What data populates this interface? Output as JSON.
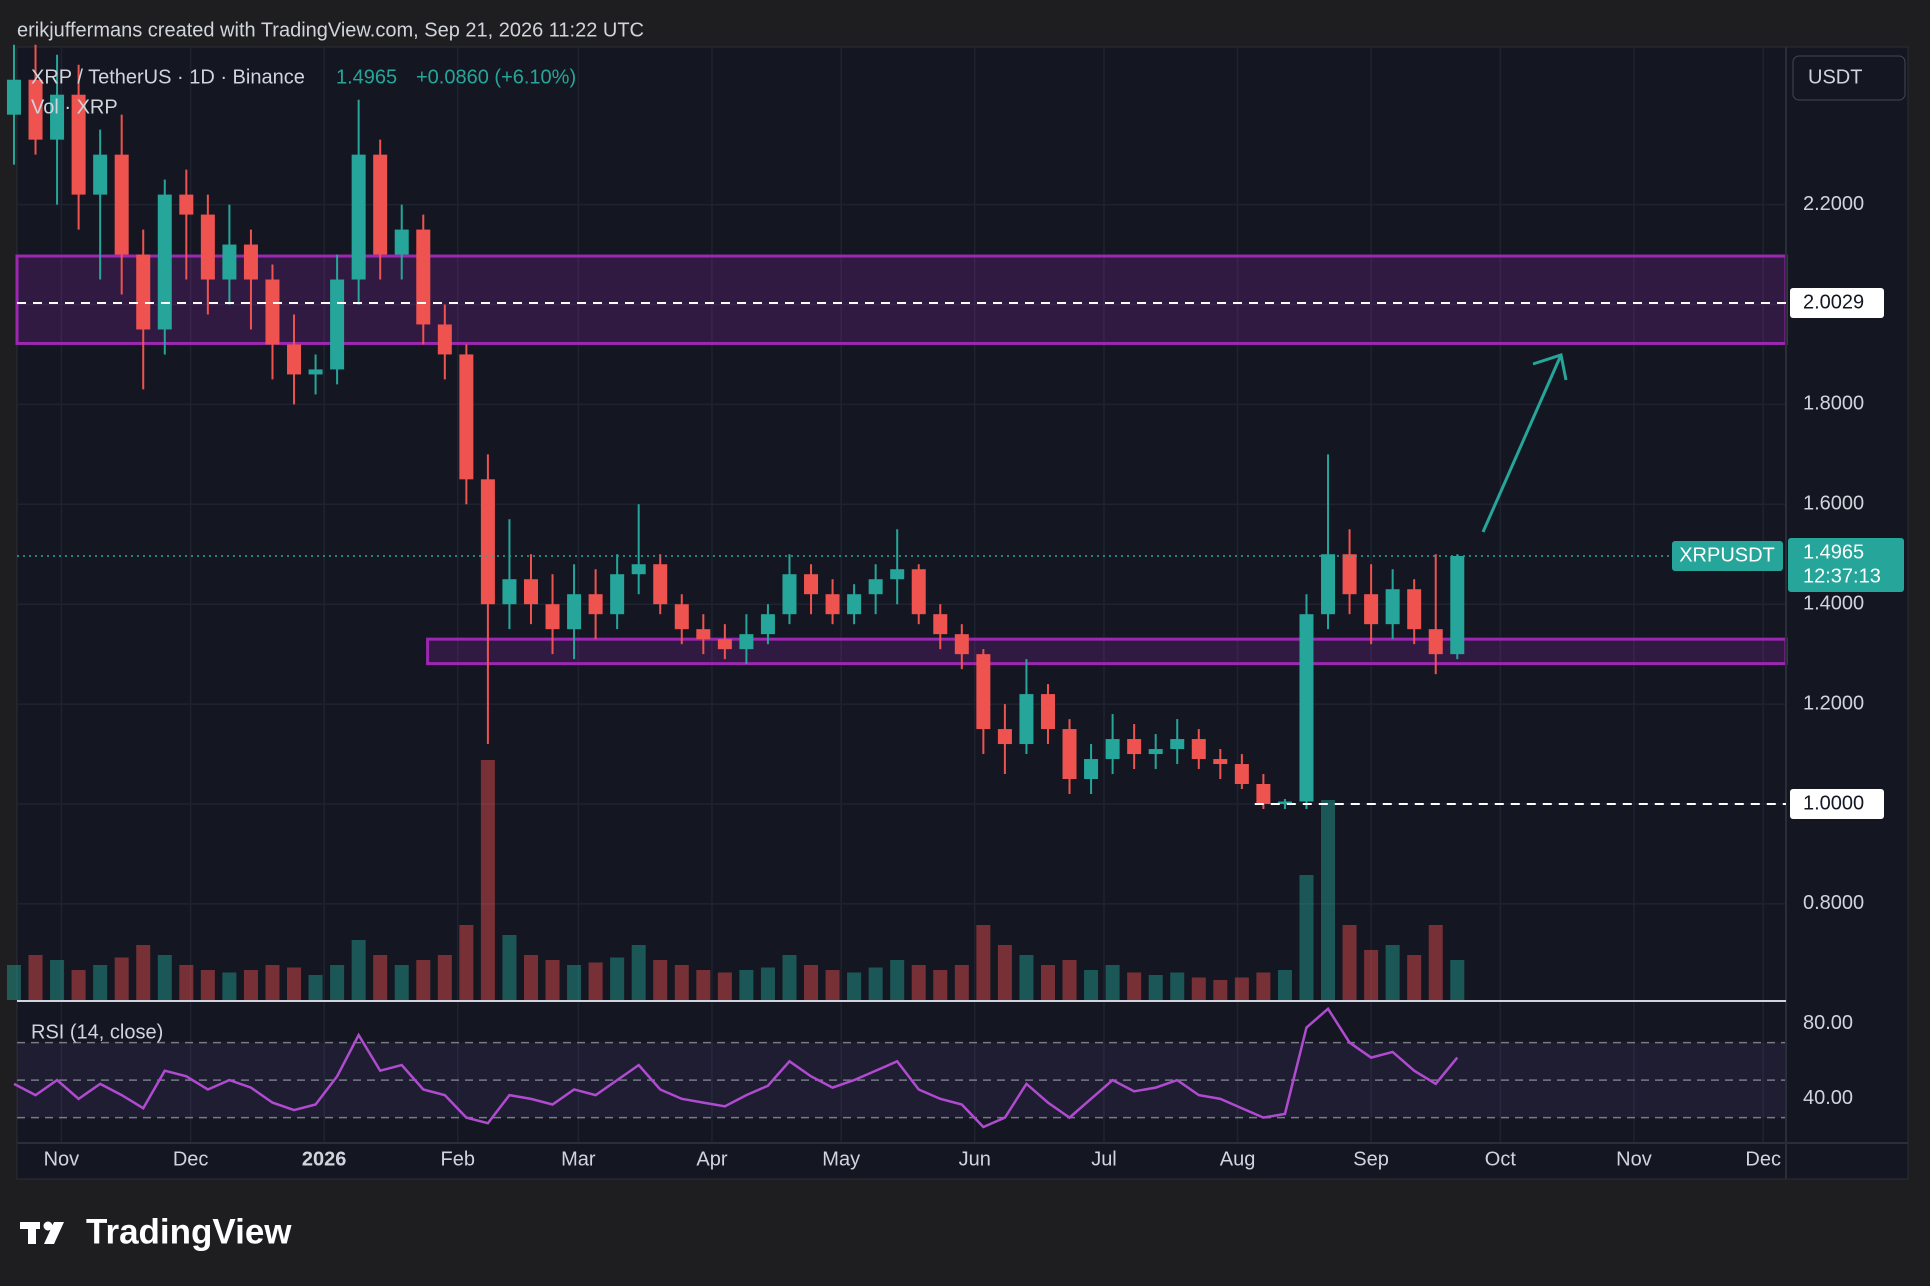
{
  "header": {
    "credit": "erikjuffermans created with TradingView.com, Sep 21, 2026 11:22 UTC"
  },
  "chart_data": {
    "type": "candlestick",
    "legend": "XRP / TetherUS · 1D · Binance",
    "last_price": 1.4965,
    "change": "+0.0860 (+6.10%)",
    "volume_label": "Vol · XRP",
    "rsi_label": "RSI (14, close)",
    "currency_button": "USDT",
    "symbol_tag": "XRPUSDT",
    "countdown": "12:37:13",
    "up_color": "#26a69a",
    "down_color": "#ef5350",
    "zone_color": "#9c27b0",
    "rsi_color": "#b04bd0",
    "grid": true,
    "xlim": [
      -10.3,
      400.3
    ],
    "xticks": [
      {
        "value": 0,
        "label": "Nov"
      },
      {
        "value": 30,
        "label": "Dec"
      },
      {
        "value": 61,
        "label": "2026",
        "bold": true
      },
      {
        "value": 92,
        "label": "Feb"
      },
      {
        "value": 120,
        "label": "Mar"
      },
      {
        "value": 151,
        "label": "Apr"
      },
      {
        "value": 181,
        "label": "May"
      },
      {
        "value": 212,
        "label": "Jun"
      },
      {
        "value": 242,
        "label": "Jul"
      },
      {
        "value": 273,
        "label": "Aug"
      },
      {
        "value": 304,
        "label": "Sep"
      },
      {
        "value": 334,
        "label": "Oct"
      },
      {
        "value": 365,
        "label": "Nov"
      },
      {
        "value": 395,
        "label": "Dec"
      }
    ],
    "ylim": [
      0.6076,
      2.5155
    ],
    "yticks": [
      {
        "value": 0.8,
        "label": "0.8000"
      },
      {
        "value": 1.0,
        "label": "1.0000"
      },
      {
        "value": 1.2,
        "label": "1.2000"
      },
      {
        "value": 1.4,
        "label": "1.4000"
      },
      {
        "value": 1.6,
        "label": "1.6000"
      },
      {
        "value": 1.8,
        "label": "1.8000"
      },
      {
        "value": 2.0,
        "label": "2.0000"
      },
      {
        "value": 2.2,
        "label": "2.2000"
      }
    ],
    "zones": [
      {
        "high": 2.097,
        "low": 1.922
      },
      {
        "high": 1.33,
        "low": 1.281,
        "start": 85
      }
    ],
    "price_lines": [
      {
        "value": 2.0029
      },
      {
        "value": 1,
        "label": "1.0000",
        "start": 277
      }
    ],
    "candles": [
      {
        "x": -11,
        "open": 2.38,
        "high": 2.52,
        "low": 2.28,
        "close": 2.45
      },
      {
        "x": -6,
        "open": 2.45,
        "high": 2.52,
        "low": 2.3,
        "close": 2.33
      },
      {
        "x": -1,
        "open": 2.33,
        "high": 2.5,
        "low": 2.2,
        "close": 2.42
      },
      {
        "x": 4,
        "open": 2.42,
        "high": 2.48,
        "low": 2.15,
        "close": 2.22
      },
      {
        "x": 9,
        "open": 2.22,
        "high": 2.35,
        "low": 2.05,
        "close": 2.3
      },
      {
        "x": 14,
        "open": 2.3,
        "high": 2.38,
        "low": 2.02,
        "close": 2.1
      },
      {
        "x": 19,
        "open": 2.1,
        "high": 2.15,
        "low": 1.83,
        "close": 1.95
      },
      {
        "x": 24,
        "open": 1.95,
        "high": 2.25,
        "low": 1.9,
        "close": 2.22
      },
      {
        "x": 29,
        "open": 2.22,
        "high": 2.27,
        "low": 2.05,
        "close": 2.18
      },
      {
        "x": 34,
        "open": 2.18,
        "high": 2.22,
        "low": 1.98,
        "close": 2.05
      },
      {
        "x": 39,
        "open": 2.05,
        "high": 2.2,
        "low": 2.0,
        "close": 2.12
      },
      {
        "x": 44,
        "open": 2.12,
        "high": 2.15,
        "low": 1.95,
        "close": 2.05
      },
      {
        "x": 49,
        "open": 2.05,
        "high": 2.08,
        "low": 1.85,
        "close": 1.92
      },
      {
        "x": 54,
        "open": 1.92,
        "high": 1.98,
        "low": 1.8,
        "close": 1.86
      },
      {
        "x": 59,
        "open": 1.86,
        "high": 1.9,
        "low": 1.82,
        "close": 1.87
      },
      {
        "x": 64,
        "open": 1.87,
        "high": 2.1,
        "low": 1.84,
        "close": 2.05
      },
      {
        "x": 69,
        "open": 2.05,
        "high": 2.41,
        "low": 2.0,
        "close": 2.3
      },
      {
        "x": 74,
        "open": 2.3,
        "high": 2.33,
        "low": 2.05,
        "close": 2.1
      },
      {
        "x": 79,
        "open": 2.1,
        "high": 2.2,
        "low": 2.05,
        "close": 2.15
      },
      {
        "x": 84,
        "open": 2.15,
        "high": 2.18,
        "low": 1.92,
        "close": 1.96
      },
      {
        "x": 89,
        "open": 1.96,
        "high": 2.0,
        "low": 1.85,
        "close": 1.9
      },
      {
        "x": 94,
        "open": 1.9,
        "high": 1.92,
        "low": 1.6,
        "close": 1.65
      },
      {
        "x": 99,
        "open": 1.65,
        "high": 1.7,
        "low": 1.12,
        "close": 1.4
      },
      {
        "x": 104,
        "open": 1.4,
        "high": 1.57,
        "low": 1.35,
        "close": 1.45
      },
      {
        "x": 109,
        "open": 1.45,
        "high": 1.5,
        "low": 1.36,
        "close": 1.4
      },
      {
        "x": 114,
        "open": 1.4,
        "high": 1.46,
        "low": 1.3,
        "close": 1.35
      },
      {
        "x": 119,
        "open": 1.35,
        "high": 1.48,
        "low": 1.29,
        "close": 1.42
      },
      {
        "x": 124,
        "open": 1.42,
        "high": 1.47,
        "low": 1.33,
        "close": 1.38
      },
      {
        "x": 129,
        "open": 1.38,
        "high": 1.5,
        "low": 1.35,
        "close": 1.46
      },
      {
        "x": 134,
        "open": 1.46,
        "high": 1.6,
        "low": 1.42,
        "close": 1.48
      },
      {
        "x": 139,
        "open": 1.48,
        "high": 1.5,
        "low": 1.38,
        "close": 1.4
      },
      {
        "x": 144,
        "open": 1.4,
        "high": 1.42,
        "low": 1.32,
        "close": 1.35
      },
      {
        "x": 149,
        "open": 1.35,
        "high": 1.38,
        "low": 1.3,
        "close": 1.33
      },
      {
        "x": 154,
        "open": 1.33,
        "high": 1.36,
        "low": 1.29,
        "close": 1.31
      },
      {
        "x": 159,
        "open": 1.31,
        "high": 1.38,
        "low": 1.28,
        "close": 1.34
      },
      {
        "x": 164,
        "open": 1.34,
        "high": 1.4,
        "low": 1.32,
        "close": 1.38
      },
      {
        "x": 169,
        "open": 1.38,
        "high": 1.5,
        "low": 1.36,
        "close": 1.46
      },
      {
        "x": 174,
        "open": 1.46,
        "high": 1.48,
        "low": 1.38,
        "close": 1.42
      },
      {
        "x": 179,
        "open": 1.42,
        "high": 1.45,
        "low": 1.36,
        "close": 1.38
      },
      {
        "x": 184,
        "open": 1.38,
        "high": 1.44,
        "low": 1.36,
        "close": 1.42
      },
      {
        "x": 189,
        "open": 1.42,
        "high": 1.48,
        "low": 1.38,
        "close": 1.45
      },
      {
        "x": 194,
        "open": 1.45,
        "high": 1.55,
        "low": 1.4,
        "close": 1.47
      },
      {
        "x": 199,
        "open": 1.47,
        "high": 1.48,
        "low": 1.36,
        "close": 1.38
      },
      {
        "x": 204,
        "open": 1.38,
        "high": 1.4,
        "low": 1.31,
        "close": 1.34
      },
      {
        "x": 209,
        "open": 1.34,
        "high": 1.36,
        "low": 1.27,
        "close": 1.3
      },
      {
        "x": 214,
        "open": 1.3,
        "high": 1.31,
        "low": 1.1,
        "close": 1.15
      },
      {
        "x": 219,
        "open": 1.15,
        "high": 1.2,
        "low": 1.06,
        "close": 1.12
      },
      {
        "x": 224,
        "open": 1.12,
        "high": 1.29,
        "low": 1.1,
        "close": 1.22
      },
      {
        "x": 229,
        "open": 1.22,
        "high": 1.24,
        "low": 1.12,
        "close": 1.15
      },
      {
        "x": 234,
        "open": 1.15,
        "high": 1.17,
        "low": 1.02,
        "close": 1.05
      },
      {
        "x": 239,
        "open": 1.05,
        "high": 1.12,
        "low": 1.02,
        "close": 1.09
      },
      {
        "x": 244,
        "open": 1.09,
        "high": 1.18,
        "low": 1.06,
        "close": 1.13
      },
      {
        "x": 249,
        "open": 1.13,
        "high": 1.16,
        "low": 1.07,
        "close": 1.1
      },
      {
        "x": 254,
        "open": 1.1,
        "high": 1.14,
        "low": 1.07,
        "close": 1.11
      },
      {
        "x": 259,
        "open": 1.11,
        "high": 1.17,
        "low": 1.08,
        "close": 1.13
      },
      {
        "x": 264,
        "open": 1.13,
        "high": 1.15,
        "low": 1.07,
        "close": 1.09
      },
      {
        "x": 269,
        "open": 1.09,
        "high": 1.11,
        "low": 1.05,
        "close": 1.08
      },
      {
        "x": 274,
        "open": 1.08,
        "high": 1.1,
        "low": 1.03,
        "close": 1.04
      },
      {
        "x": 279,
        "open": 1.04,
        "high": 1.06,
        "low": 0.99,
        "close": 1.0
      },
      {
        "x": 284,
        "open": 1.0,
        "high": 1.01,
        "low": 0.99,
        "close": 1.005
      },
      {
        "x": 289,
        "open": 1.005,
        "high": 1.42,
        "low": 0.99,
        "close": 1.38
      },
      {
        "x": 294,
        "open": 1.38,
        "high": 1.7,
        "low": 1.35,
        "close": 1.5
      },
      {
        "x": 299,
        "open": 1.5,
        "high": 1.55,
        "low": 1.38,
        "close": 1.42
      },
      {
        "x": 304,
        "open": 1.42,
        "high": 1.48,
        "low": 1.32,
        "close": 1.36
      },
      {
        "x": 309,
        "open": 1.36,
        "high": 1.47,
        "low": 1.33,
        "close": 1.43
      },
      {
        "x": 314,
        "open": 1.43,
        "high": 1.45,
        "low": 1.32,
        "close": 1.35
      },
      {
        "x": 319,
        "open": 1.35,
        "high": 1.5,
        "low": 1.26,
        "close": 1.3
      },
      {
        "x": 324,
        "open": 1.3,
        "high": 1.5,
        "low": 1.29,
        "close": 1.4965
      }
    ],
    "volume": [
      70,
      90,
      80,
      60,
      70,
      85,
      110,
      90,
      70,
      60,
      55,
      60,
      70,
      65,
      50,
      70,
      120,
      90,
      70,
      80,
      90,
      150,
      480,
      130,
      90,
      80,
      70,
      75,
      85,
      110,
      80,
      70,
      60,
      55,
      60,
      65,
      90,
      70,
      60,
      55,
      65,
      80,
      70,
      60,
      70,
      150,
      110,
      90,
      70,
      80,
      60,
      70,
      55,
      50,
      55,
      45,
      40,
      45,
      55,
      60,
      250,
      400,
      150,
      100,
      110,
      90,
      150,
      80
    ],
    "rsi": {
      "ylim": [
        17,
        91.1
      ],
      "yticks": [
        {
          "value": 40,
          "label": "40.00"
        },
        {
          "value": 80,
          "label": "80.00"
        }
      ],
      "levels": [
        30,
        50,
        70
      ],
      "values": [
        48,
        42,
        50,
        40,
        48,
        42,
        35,
        55,
        52,
        45,
        50,
        46,
        38,
        34,
        37,
        52,
        74,
        55,
        58,
        45,
        42,
        30,
        27,
        42,
        40,
        37,
        45,
        42,
        50,
        58,
        45,
        40,
        38,
        36,
        42,
        47,
        60,
        52,
        46,
        50,
        55,
        60,
        45,
        40,
        37,
        25,
        30,
        48,
        38,
        30,
        40,
        50,
        44,
        46,
        50,
        42,
        40,
        35,
        30,
        32,
        78,
        88,
        70,
        62,
        65,
        55,
        48,
        62
      ]
    }
  },
  "footer": {
    "brand": "TradingView"
  }
}
